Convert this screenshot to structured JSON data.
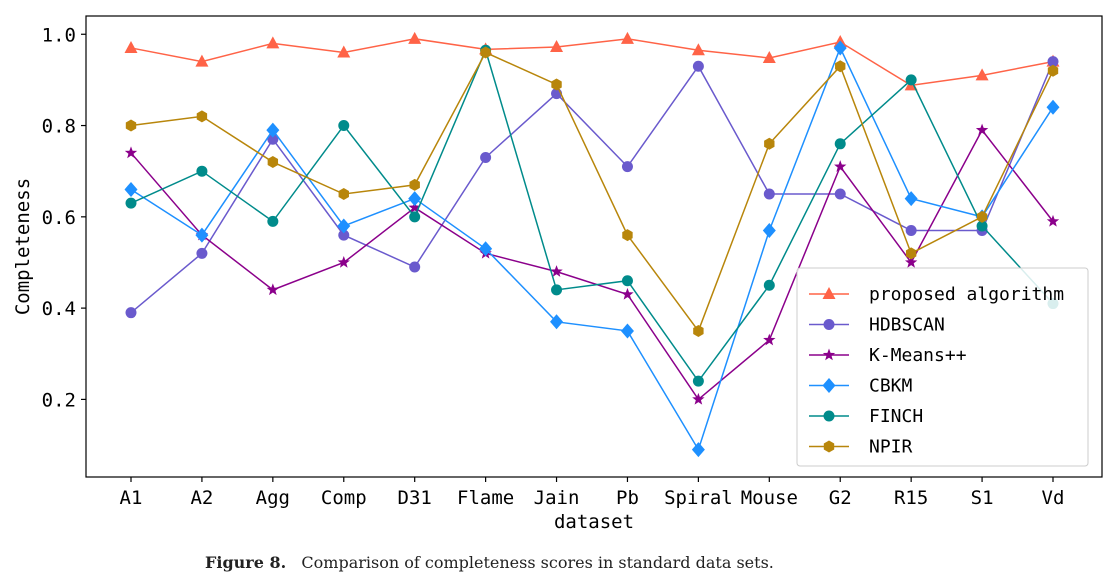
{
  "chart_data": {
    "type": "line",
    "title": "",
    "xlabel": "dataset",
    "ylabel": "Completeness",
    "categories": [
      "A1",
      "A2",
      "Agg",
      "Comp",
      "D31",
      "Flame",
      "Jain",
      "Pb",
      "Spiral",
      "Mouse",
      "G2",
      "R15",
      "S1",
      "Vd"
    ],
    "ylim": [
      0.03,
      1.04
    ],
    "yticks": [
      "0.2",
      "0.4",
      "0.6",
      "0.8",
      "1.0"
    ],
    "grid": false,
    "legend_position": "lower-right",
    "series": [
      {
        "name": "proposed algorithm",
        "color": "#FF6347",
        "marker": "triangle",
        "values": [
          0.97,
          0.94,
          0.98,
          0.96,
          0.99,
          0.967,
          0.972,
          0.99,
          0.965,
          0.948,
          0.983,
          0.888,
          0.91,
          0.94
        ]
      },
      {
        "name": "HDBSCAN",
        "color": "#6A5ACD",
        "marker": "circle",
        "values": [
          0.39,
          0.52,
          0.77,
          0.56,
          0.49,
          0.73,
          0.87,
          0.71,
          0.93,
          0.65,
          0.65,
          0.57,
          0.57,
          0.94
        ]
      },
      {
        "name": "K-Means++",
        "color": "#8B008B",
        "marker": "star",
        "values": [
          0.74,
          0.56,
          0.44,
          0.5,
          0.62,
          0.52,
          0.48,
          0.43,
          0.2,
          0.33,
          0.71,
          0.5,
          0.79,
          0.59
        ]
      },
      {
        "name": "CBKM",
        "color": "#1E90FF",
        "marker": "diamond",
        "values": [
          0.66,
          0.56,
          0.79,
          0.58,
          0.64,
          0.53,
          0.37,
          0.35,
          0.09,
          0.57,
          0.97,
          0.64,
          0.6,
          0.84
        ]
      },
      {
        "name": "FINCH",
        "color": "#008B8B",
        "marker": "circle",
        "values": [
          0.63,
          0.7,
          0.59,
          0.8,
          0.6,
          0.965,
          0.44,
          0.46,
          0.24,
          0.45,
          0.76,
          0.9,
          0.58,
          0.41
        ]
      },
      {
        "name": "NPIR",
        "color": "#B8860B",
        "marker": "hexagon",
        "values": [
          0.8,
          0.82,
          0.72,
          0.65,
          0.67,
          0.96,
          0.89,
          0.56,
          0.35,
          0.76,
          0.93,
          0.52,
          0.6,
          0.92
        ]
      }
    ]
  },
  "caption": {
    "label": "Figure 8.",
    "text": "Comparison of completeness scores in standard data sets."
  }
}
